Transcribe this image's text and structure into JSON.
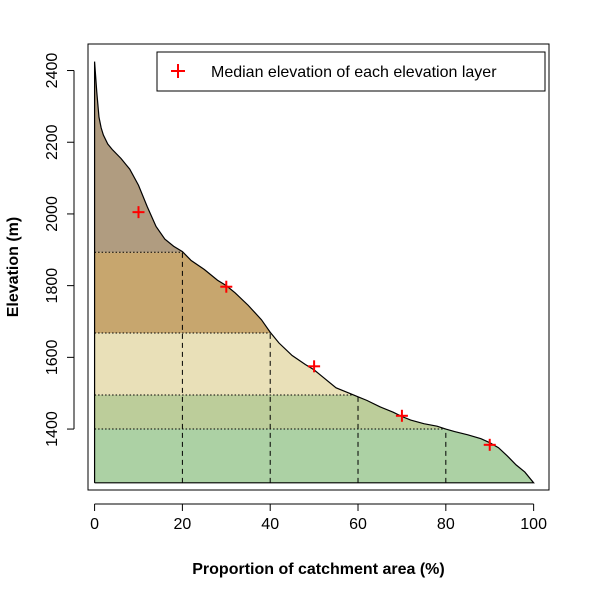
{
  "chart_data": {
    "type": "area",
    "title": "",
    "xlabel": "Proportion of catchment area (%)",
    "ylabel": "Elevation (m)",
    "xlim": [
      -1.5,
      103.5
    ],
    "ylim": [
      1230,
      2474
    ],
    "xticks": [
      0,
      20,
      40,
      60,
      80,
      100
    ],
    "yticks": [
      1400,
      1600,
      1800,
      2000,
      2200,
      2400
    ],
    "grid": false,
    "legend_position": "top-right",
    "hypsometric_curve": {
      "x": [
        0,
        0.5,
        1,
        1.5,
        2,
        3,
        4,
        6,
        8,
        10,
        12,
        14,
        16,
        18,
        20,
        22,
        25,
        28,
        30,
        32,
        35,
        38,
        40,
        42,
        45,
        48,
        50,
        52,
        55,
        58,
        60,
        62,
        65,
        68,
        70,
        72,
        75,
        78,
        80,
        82,
        85,
        88,
        90,
        92,
        94,
        96,
        98,
        100
      ],
      "y": [
        2425,
        2340,
        2270,
        2240,
        2220,
        2195,
        2180,
        2155,
        2125,
        2080,
        2020,
        1965,
        1930,
        1910,
        1895,
        1870,
        1845,
        1815,
        1800,
        1780,
        1745,
        1705,
        1670,
        1640,
        1605,
        1580,
        1565,
        1545,
        1515,
        1500,
        1490,
        1480,
        1462,
        1447,
        1435,
        1425,
        1415,
        1408,
        1400,
        1393,
        1384,
        1373,
        1362,
        1348,
        1325,
        1300,
        1280,
        1250
      ]
    },
    "base_elevation": 1250,
    "layers": [
      {
        "name": "layer-1",
        "y_from": 1250,
        "y_to": 1400,
        "x_right": 100,
        "color": "#acd1a4"
      },
      {
        "name": "layer-2",
        "y_from": 1400,
        "y_to": 1495,
        "x_right": 80,
        "color": "#bccd9a"
      },
      {
        "name": "layer-3",
        "y_from": 1495,
        "y_to": 1668,
        "x_right": 60,
        "color": "#e9e0b8"
      },
      {
        "name": "layer-4",
        "y_from": 1668,
        "y_to": 1893,
        "x_right": 40,
        "color": "#c7a66e"
      },
      {
        "name": "layer-5",
        "y_from": 1893,
        "y_to": 2425,
        "x_right": 20,
        "color": "#b09c80"
      }
    ],
    "layer_dividers": [
      {
        "x": 20,
        "y_top": 1893
      },
      {
        "x": 40,
        "y_top": 1668
      },
      {
        "x": 60,
        "y_top": 1495
      },
      {
        "x": 80,
        "y_top": 1400
      }
    ],
    "series": [
      {
        "name": "Median elevation of each elevation layer",
        "type": "scatter",
        "marker": "+",
        "color": "#ff0000",
        "x": [
          10,
          30,
          50,
          70,
          90
        ],
        "y": [
          2005,
          1797,
          1575,
          1437,
          1356
        ]
      }
    ]
  }
}
